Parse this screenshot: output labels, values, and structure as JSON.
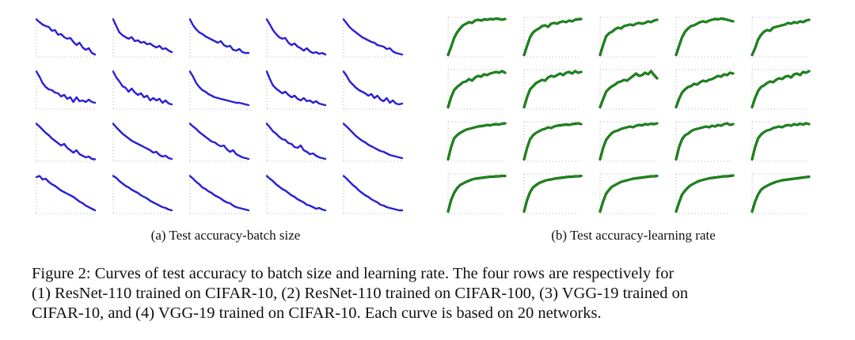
{
  "figure": {
    "subcaption_a": "(a) Test accuracy-batch size",
    "subcaption_b": "(b) Test accuracy-learning rate",
    "caption_lines": [
      "Figure 2: Curves of test accuracy to batch size and learning rate. The four rows are respectively for",
      "(1) ResNet-110 trained on CIFAR-10, (2) ResNet-110 trained on CIFAR-100, (3) VGG-19 trained on",
      "CIFAR-10, and (4) VGG-19 trained on CIFAR-10. Each curve is based on 20 networks."
    ]
  },
  "colors": {
    "batch_line": "#2a1fd6",
    "lr_line": "#1f8a1f",
    "lr_line_highlight": "#0a5c0a",
    "guide": "#9a9a9a"
  },
  "chart_data": [
    {
      "type": "line",
      "panel": "a",
      "grid": [
        4,
        5
      ],
      "ylim": [
        0,
        1
      ],
      "series": [
        {
          "values": [
            0.95,
            0.88,
            0.82,
            0.78,
            0.76,
            0.66,
            0.68,
            0.56,
            0.58,
            0.5,
            0.46,
            0.48,
            0.38,
            0.3,
            0.36,
            0.24,
            0.18,
            0.22,
            0.1,
            0.06
          ]
        },
        {
          "values": [
            0.95,
            0.78,
            0.62,
            0.55,
            0.5,
            0.46,
            0.5,
            0.4,
            0.42,
            0.36,
            0.38,
            0.32,
            0.34,
            0.28,
            0.24,
            0.28,
            0.2,
            0.22,
            0.16,
            0.12
          ]
        },
        {
          "values": [
            0.95,
            0.8,
            0.7,
            0.62,
            0.58,
            0.52,
            0.48,
            0.44,
            0.4,
            0.36,
            0.4,
            0.3,
            0.26,
            0.28,
            0.18,
            0.16,
            0.2,
            0.12,
            0.1,
            0.1
          ]
        },
        {
          "values": [
            0.95,
            0.82,
            0.68,
            0.58,
            0.5,
            0.46,
            0.48,
            0.36,
            0.3,
            0.34,
            0.26,
            0.22,
            0.16,
            0.22,
            0.14,
            0.1,
            0.12,
            0.08,
            0.1,
            0.06
          ]
        },
        {
          "values": [
            0.95,
            0.85,
            0.75,
            0.68,
            0.62,
            0.56,
            0.5,
            0.46,
            0.42,
            0.38,
            0.36,
            0.3,
            0.28,
            0.26,
            0.2,
            0.22,
            0.14,
            0.1,
            0.08,
            0.06
          ]
        },
        {
          "values": [
            0.95,
            0.82,
            0.66,
            0.56,
            0.5,
            0.48,
            0.42,
            0.4,
            0.32,
            0.36,
            0.26,
            0.3,
            0.18,
            0.3,
            0.2,
            0.22,
            0.18,
            0.24,
            0.18,
            0.16
          ]
        },
        {
          "values": [
            0.95,
            0.8,
            0.7,
            0.58,
            0.54,
            0.44,
            0.52,
            0.42,
            0.36,
            0.4,
            0.3,
            0.34,
            0.22,
            0.28,
            0.22,
            0.26,
            0.16,
            0.22,
            0.14,
            0.12
          ]
        },
        {
          "values": [
            0.95,
            0.82,
            0.66,
            0.56,
            0.48,
            0.44,
            0.38,
            0.34,
            0.3,
            0.28,
            0.26,
            0.24,
            0.22,
            0.2,
            0.18,
            0.16,
            0.16,
            0.14,
            0.12,
            0.1
          ]
        },
        {
          "values": [
            0.95,
            0.76,
            0.6,
            0.52,
            0.46,
            0.4,
            0.44,
            0.36,
            0.3,
            0.34,
            0.26,
            0.22,
            0.28,
            0.2,
            0.22,
            0.16,
            0.2,
            0.14,
            0.12,
            0.1
          ]
        },
        {
          "values": [
            0.95,
            0.84,
            0.7,
            0.62,
            0.54,
            0.48,
            0.44,
            0.4,
            0.34,
            0.38,
            0.28,
            0.34,
            0.24,
            0.2,
            0.28,
            0.16,
            0.22,
            0.14,
            0.12,
            0.14
          ]
        },
        {
          "values": [
            0.95,
            0.88,
            0.8,
            0.72,
            0.66,
            0.58,
            0.52,
            0.46,
            0.4,
            0.44,
            0.34,
            0.28,
            0.22,
            0.28,
            0.18,
            0.14,
            0.1,
            0.12,
            0.06,
            0.05
          ]
        },
        {
          "values": [
            0.95,
            0.86,
            0.78,
            0.7,
            0.64,
            0.58,
            0.52,
            0.48,
            0.44,
            0.4,
            0.36,
            0.32,
            0.28,
            0.22,
            0.24,
            0.16,
            0.12,
            0.14,
            0.08,
            0.06
          ]
        },
        {
          "values": [
            0.95,
            0.88,
            0.82,
            0.74,
            0.68,
            0.62,
            0.56,
            0.5,
            0.48,
            0.42,
            0.38,
            0.4,
            0.3,
            0.24,
            0.28,
            0.18,
            0.14,
            0.1,
            0.08,
            0.06
          ]
        },
        {
          "values": [
            0.95,
            0.86,
            0.76,
            0.7,
            0.62,
            0.56,
            0.54,
            0.46,
            0.44,
            0.36,
            0.34,
            0.4,
            0.28,
            0.24,
            0.18,
            0.2,
            0.14,
            0.1,
            0.08,
            0.06
          ]
        },
        {
          "values": [
            0.95,
            0.88,
            0.8,
            0.72,
            0.64,
            0.58,
            0.52,
            0.48,
            0.42,
            0.38,
            0.34,
            0.3,
            0.26,
            0.24,
            0.2,
            0.16,
            0.14,
            0.12,
            0.1,
            0.08
          ]
        },
        {
          "values": [
            0.92,
            0.95,
            0.86,
            0.88,
            0.8,
            0.74,
            0.7,
            0.64,
            0.58,
            0.54,
            0.5,
            0.46,
            0.42,
            0.36,
            0.3,
            0.26,
            0.2,
            0.16,
            0.12,
            0.08
          ]
        },
        {
          "values": [
            0.95,
            0.9,
            0.82,
            0.76,
            0.7,
            0.66,
            0.6,
            0.56,
            0.52,
            0.46,
            0.42,
            0.38,
            0.32,
            0.28,
            0.24,
            0.2,
            0.16,
            0.14,
            0.1,
            0.08
          ]
        },
        {
          "values": [
            0.95,
            0.88,
            0.8,
            0.74,
            0.66,
            0.62,
            0.56,
            0.52,
            0.46,
            0.42,
            0.38,
            0.32,
            0.28,
            0.26,
            0.2,
            0.16,
            0.14,
            0.12,
            0.1,
            0.08
          ]
        },
        {
          "values": [
            0.95,
            0.88,
            0.82,
            0.74,
            0.68,
            0.62,
            0.58,
            0.52,
            0.46,
            0.42,
            0.36,
            0.32,
            0.28,
            0.22,
            0.2,
            0.16,
            0.12,
            0.14,
            0.1,
            0.08
          ]
        },
        {
          "values": [
            0.95,
            0.88,
            0.8,
            0.72,
            0.66,
            0.58,
            0.52,
            0.46,
            0.42,
            0.36,
            0.32,
            0.28,
            0.22,
            0.2,
            0.16,
            0.14,
            0.12,
            0.1,
            0.08,
            0.08
          ]
        }
      ]
    },
    {
      "type": "line",
      "panel": "b",
      "grid": [
        4,
        5
      ],
      "ylim": [
        0,
        1
      ],
      "series": [
        {
          "values": [
            0.05,
            0.25,
            0.48,
            0.62,
            0.72,
            0.8,
            0.84,
            0.88,
            0.86,
            0.92,
            0.94,
            0.92,
            0.95,
            0.94,
            0.96,
            0.95,
            0.97,
            0.96,
            0.94,
            0.96
          ]
        },
        {
          "values": [
            0.05,
            0.28,
            0.5,
            0.62,
            0.68,
            0.72,
            0.78,
            0.8,
            0.76,
            0.84,
            0.86,
            0.84,
            0.88,
            0.9,
            0.88,
            0.92,
            0.9,
            0.94,
            0.95,
            0.96
          ]
        },
        {
          "values": [
            0.05,
            0.3,
            0.52,
            0.6,
            0.64,
            0.7,
            0.74,
            0.72,
            0.78,
            0.8,
            0.82,
            0.8,
            0.84,
            0.86,
            0.84,
            0.86,
            0.9,
            0.88,
            0.92,
            0.94
          ]
        },
        {
          "values": [
            0.05,
            0.28,
            0.5,
            0.64,
            0.72,
            0.78,
            0.8,
            0.84,
            0.88,
            0.9,
            0.88,
            0.92,
            0.94,
            0.96,
            0.95,
            0.97,
            0.96,
            0.94,
            0.92,
            0.9
          ]
        },
        {
          "values": [
            0.05,
            0.22,
            0.44,
            0.56,
            0.64,
            0.68,
            0.66,
            0.74,
            0.76,
            0.78,
            0.8,
            0.82,
            0.86,
            0.84,
            0.88,
            0.86,
            0.9,
            0.88,
            0.92,
            0.94
          ]
        },
        {
          "values": [
            0.05,
            0.3,
            0.48,
            0.56,
            0.62,
            0.68,
            0.7,
            0.76,
            0.72,
            0.8,
            0.84,
            0.82,
            0.88,
            0.86,
            0.9,
            0.92,
            0.94,
            0.92,
            0.96,
            0.92
          ]
        },
        {
          "values": [
            0.05,
            0.3,
            0.5,
            0.58,
            0.66,
            0.7,
            0.74,
            0.72,
            0.8,
            0.84,
            0.82,
            0.86,
            0.9,
            0.86,
            0.92,
            0.94,
            0.9,
            0.96,
            0.92,
            0.94
          ]
        },
        {
          "values": [
            0.05,
            0.25,
            0.44,
            0.52,
            0.58,
            0.62,
            0.68,
            0.7,
            0.74,
            0.72,
            0.78,
            0.84,
            0.9,
            0.84,
            0.86,
            0.92,
            0.88,
            0.96,
            0.86,
            0.78
          ]
        },
        {
          "values": [
            0.05,
            0.26,
            0.42,
            0.5,
            0.56,
            0.58,
            0.64,
            0.62,
            0.68,
            0.72,
            0.7,
            0.74,
            0.76,
            0.8,
            0.84,
            0.82,
            0.88,
            0.86,
            0.92,
            0.9
          ]
        },
        {
          "values": [
            0.05,
            0.28,
            0.46,
            0.56,
            0.6,
            0.66,
            0.7,
            0.68,
            0.74,
            0.78,
            0.76,
            0.82,
            0.84,
            0.8,
            0.88,
            0.9,
            0.86,
            0.94,
            0.92,
            0.96
          ]
        },
        {
          "values": [
            0.05,
            0.36,
            0.58,
            0.66,
            0.72,
            0.76,
            0.8,
            0.82,
            0.84,
            0.86,
            0.88,
            0.89,
            0.9,
            0.92,
            0.91,
            0.93,
            0.94,
            0.93,
            0.95,
            0.96
          ]
        },
        {
          "values": [
            0.05,
            0.34,
            0.56,
            0.66,
            0.72,
            0.76,
            0.8,
            0.82,
            0.86,
            0.84,
            0.88,
            0.9,
            0.91,
            0.92,
            0.93,
            0.92,
            0.94,
            0.95,
            0.96,
            0.94
          ]
        },
        {
          "values": [
            0.05,
            0.34,
            0.54,
            0.64,
            0.72,
            0.76,
            0.78,
            0.82,
            0.84,
            0.86,
            0.88,
            0.86,
            0.9,
            0.92,
            0.91,
            0.94,
            0.93,
            0.95,
            0.94,
            0.96
          ]
        },
        {
          "values": [
            0.05,
            0.36,
            0.56,
            0.66,
            0.7,
            0.76,
            0.8,
            0.82,
            0.84,
            0.86,
            0.88,
            0.86,
            0.9,
            0.88,
            0.92,
            0.9,
            0.94,
            0.96,
            0.92,
            0.94
          ]
        },
        {
          "values": [
            0.05,
            0.36,
            0.58,
            0.68,
            0.74,
            0.78,
            0.8,
            0.84,
            0.86,
            0.88,
            0.86,
            0.9,
            0.92,
            0.9,
            0.94,
            0.92,
            0.95,
            0.93,
            0.96,
            0.94
          ]
        },
        {
          "values": [
            0.05,
            0.34,
            0.52,
            0.64,
            0.72,
            0.76,
            0.8,
            0.83,
            0.86,
            0.88,
            0.89,
            0.9,
            0.91,
            0.92,
            0.93,
            0.93,
            0.94,
            0.94,
            0.95,
            0.95
          ]
        },
        {
          "values": [
            0.05,
            0.34,
            0.54,
            0.66,
            0.72,
            0.77,
            0.8,
            0.83,
            0.85,
            0.86,
            0.88,
            0.89,
            0.9,
            0.91,
            0.92,
            0.93,
            0.93,
            0.94,
            0.94,
            0.95
          ]
        },
        {
          "values": [
            0.05,
            0.3,
            0.5,
            0.6,
            0.68,
            0.72,
            0.76,
            0.8,
            0.82,
            0.84,
            0.86,
            0.88,
            0.89,
            0.9,
            0.91,
            0.92,
            0.93,
            0.94,
            0.94,
            0.95
          ]
        },
        {
          "values": [
            0.05,
            0.28,
            0.48,
            0.58,
            0.66,
            0.72,
            0.76,
            0.8,
            0.83,
            0.85,
            0.87,
            0.89,
            0.9,
            0.91,
            0.92,
            0.93,
            0.94,
            0.94,
            0.95,
            0.96
          ]
        },
        {
          "values": [
            0.05,
            0.3,
            0.48,
            0.6,
            0.66,
            0.7,
            0.74,
            0.77,
            0.8,
            0.82,
            0.84,
            0.85,
            0.86,
            0.87,
            0.88,
            0.89,
            0.9,
            0.91,
            0.92,
            0.93
          ]
        }
      ]
    }
  ]
}
